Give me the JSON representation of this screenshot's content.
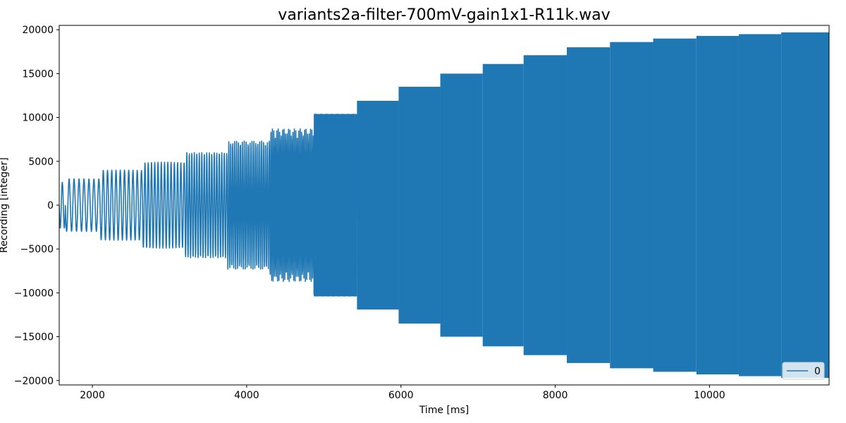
{
  "chart_data": {
    "type": "line",
    "title": "variants2a-filter-700mV-gain1x1-R11k.wav",
    "xlabel": "Time [ms]",
    "ylabel": "Recording [integer]",
    "xlim": [
      1570,
      11550
    ],
    "ylim": [
      -20500,
      20500
    ],
    "xticks": [
      2000,
      4000,
      6000,
      8000,
      10000
    ],
    "yticks": [
      20000,
      15000,
      10000,
      5000,
      0,
      -5000,
      -10000,
      -15000,
      -20000
    ],
    "grid": false,
    "legend": {
      "position": "bottom-right",
      "entries": [
        "0"
      ]
    },
    "series": [
      {
        "name": "0",
        "color": "#1f77b4",
        "segments": [
          {
            "start": 1570,
            "end": 1650,
            "amplitude": 2600,
            "cycles": 1.5
          },
          {
            "start": 1650,
            "end": 2100,
            "amplitude": 3000,
            "cycles": 7
          },
          {
            "start": 2100,
            "end": 2650,
            "amplitude": 4000,
            "cycles": 10
          },
          {
            "start": 2650,
            "end": 3200,
            "amplitude": 4900,
            "cycles": 13
          },
          {
            "start": 3200,
            "end": 3750,
            "amplitude": 6000,
            "cycles": 17
          },
          {
            "start": 3750,
            "end": 4300,
            "amplitude": 7300,
            "cycles": 22
          },
          {
            "start": 4300,
            "end": 4870,
            "amplitude": 8700,
            "cycles": 30
          },
          {
            "start": 4870,
            "end": 5430,
            "amplitude": 10400,
            "cycles": 40,
            "dense": true
          },
          {
            "start": 5430,
            "end": 5970,
            "amplitude": 11900,
            "dense": true
          },
          {
            "start": 5970,
            "end": 6510,
            "amplitude": 13500,
            "dense": true
          },
          {
            "start": 6510,
            "end": 7060,
            "amplitude": 15000,
            "dense": true
          },
          {
            "start": 7060,
            "end": 7590,
            "amplitude": 16100,
            "dense": true
          },
          {
            "start": 7590,
            "end": 8150,
            "amplitude": 17100,
            "dense": true
          },
          {
            "start": 8150,
            "end": 8710,
            "amplitude": 18000,
            "dense": true
          },
          {
            "start": 8710,
            "end": 9270,
            "amplitude": 18600,
            "dense": true
          },
          {
            "start": 9270,
            "end": 9830,
            "amplitude": 19000,
            "dense": true
          },
          {
            "start": 9830,
            "end": 10380,
            "amplitude": 19300,
            "dense": true
          },
          {
            "start": 10380,
            "end": 10930,
            "amplitude": 19500,
            "dense": true
          },
          {
            "start": 10930,
            "end": 11550,
            "amplitude": 19700,
            "dense": true
          }
        ]
      }
    ]
  }
}
